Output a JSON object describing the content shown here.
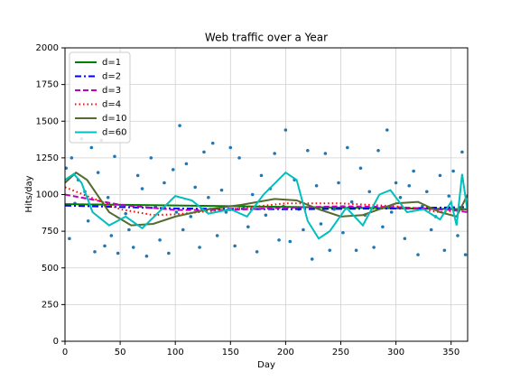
{
  "chart_data": {
    "type": "scatter",
    "title": "Web traffic over a Year",
    "xlabel": "Day",
    "ylabel": "Hits/day",
    "xlim": [
      0,
      365
    ],
    "ylim": [
      0,
      2000
    ],
    "xticks": [
      0,
      50,
      100,
      150,
      200,
      250,
      300,
      350
    ],
    "yticks": [
      0,
      250,
      500,
      750,
      1000,
      1250,
      1500,
      1750,
      2000
    ],
    "grid": true,
    "legend": "upper left",
    "point_color": "#1f77b4",
    "points": {
      "x": [
        1,
        4,
        6,
        9,
        12,
        15,
        18,
        21,
        24,
        27,
        30,
        33,
        36,
        39,
        42,
        45,
        48,
        51,
        55,
        58,
        62,
        66,
        70,
        74,
        78,
        82,
        86,
        90,
        94,
        98,
        101,
        104,
        107,
        110,
        114,
        118,
        122,
        126,
        130,
        134,
        138,
        142,
        146,
        150,
        154,
        158,
        162,
        166,
        170,
        174,
        178,
        182,
        186,
        190,
        194,
        198,
        200,
        204,
        208,
        212,
        216,
        220,
        224,
        228,
        232,
        236,
        240,
        244,
        248,
        252,
        256,
        260,
        264,
        268,
        272,
        276,
        280,
        284,
        288,
        292,
        296,
        300,
        304,
        308,
        312,
        316,
        320,
        324,
        328,
        332,
        336,
        340,
        344,
        348,
        352,
        356,
        360,
        363
      ],
      "y": [
        1180,
        700,
        1250,
        940,
        1100,
        1380,
        1020,
        820,
        1320,
        610,
        1150,
        1370,
        650,
        980,
        720,
        1260,
        600,
        1410,
        870,
        760,
        640,
        1130,
        1040,
        580,
        1250,
        920,
        690,
        1080,
        600,
        1170,
        880,
        1470,
        760,
        1210,
        850,
        1050,
        640,
        1290,
        980,
        1350,
        720,
        1030,
        880,
        1320,
        650,
        1250,
        920,
        780,
        1000,
        610,
        1130,
        860,
        1040,
        1280,
        690,
        920,
        1440,
        680,
        1100,
        900,
        760,
        1300,
        560,
        1060,
        800,
        1280,
        620,
        900,
        1080,
        740,
        1320,
        950,
        620,
        1180,
        860,
        1020,
        640,
        1300,
        780,
        1440,
        880,
        1080,
        980,
        700,
        1060,
        1160,
        590,
        920,
        1020,
        760,
        850,
        1130,
        620,
        990,
        1160,
        720,
        1290,
        590
      ]
    },
    "series": [
      {
        "name": "d=1",
        "color": "#008000",
        "style": "solid",
        "x": [
          0,
          365
        ],
        "values": [
          935,
          900
        ]
      },
      {
        "name": "d=2",
        "color": "#0000ff",
        "style": "dashdot",
        "x": [
          0,
          100,
          200,
          300,
          365
        ],
        "values": [
          925,
          905,
          900,
          905,
          915
        ]
      },
      {
        "name": "d=3",
        "color": "#bf00bf",
        "style": "dashed",
        "x": [
          0,
          50,
          100,
          150,
          200,
          250,
          300,
          350,
          365
        ],
        "values": [
          1000,
          930,
          895,
          895,
          910,
          920,
          915,
          895,
          880
        ]
      },
      {
        "name": "d=4",
        "color": "#ff0000",
        "style": "dotted",
        "x": [
          0,
          50,
          80,
          100,
          150,
          200,
          250,
          300,
          340,
          365
        ],
        "values": [
          1050,
          900,
          860,
          865,
          900,
          940,
          940,
          920,
          880,
          900
        ]
      },
      {
        "name": "d=10",
        "color": "#556b2f",
        "style": "solid",
        "x": [
          0,
          10,
          20,
          40,
          60,
          80,
          100,
          130,
          160,
          190,
          210,
          230,
          250,
          270,
          300,
          320,
          340,
          355,
          365
        ],
        "values": [
          1080,
          1150,
          1100,
          880,
          790,
          800,
          850,
          900,
          930,
          970,
          960,
          900,
          850,
          860,
          940,
          950,
          880,
          850,
          1000
        ]
      },
      {
        "name": "d=60",
        "color": "#00bfbf",
        "style": "solid",
        "x": [
          0,
          8,
          15,
          25,
          40,
          55,
          70,
          85,
          100,
          115,
          130,
          150,
          165,
          180,
          200,
          210,
          220,
          230,
          240,
          255,
          270,
          285,
          295,
          310,
          325,
          340,
          350,
          355,
          360,
          365
        ],
        "values": [
          1100,
          1140,
          1080,
          880,
          790,
          850,
          770,
          880,
          990,
          960,
          870,
          900,
          850,
          1000,
          1150,
          1100,
          820,
          700,
          750,
          910,
          790,
          1000,
          1030,
          880,
          900,
          830,
          950,
          790,
          1140,
          880
        ]
      }
    ]
  }
}
